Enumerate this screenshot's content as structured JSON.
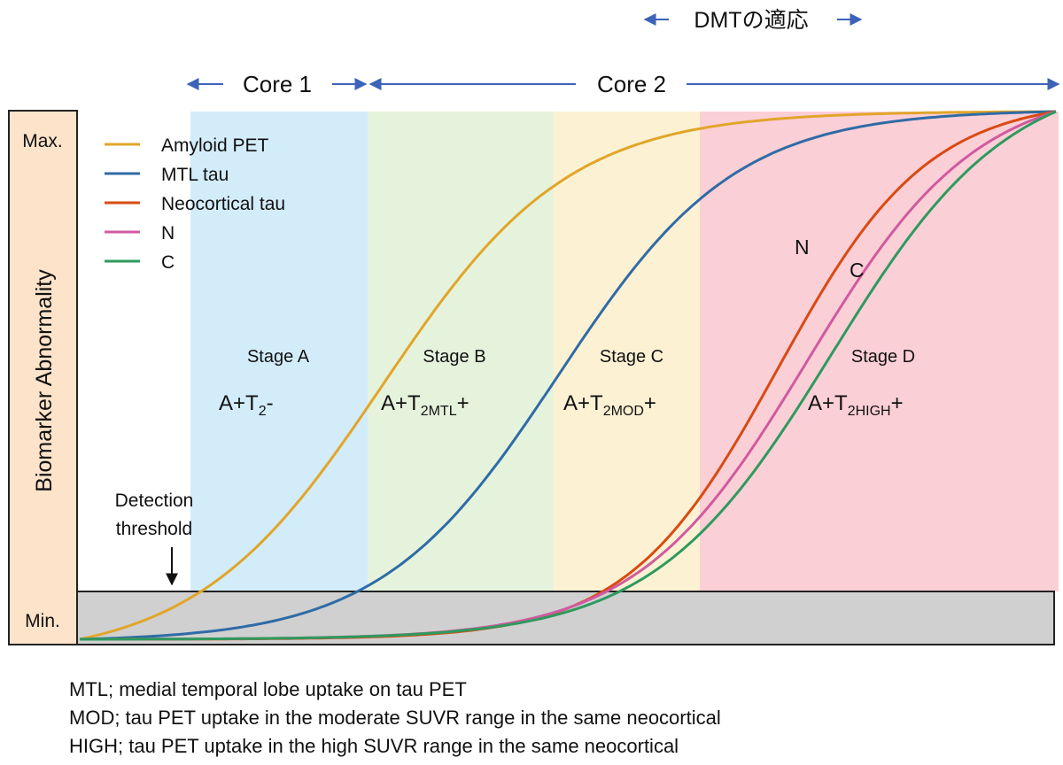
{
  "chart_data": {
    "type": "line",
    "ylabel": "Biomarker Abnormality",
    "ytick_labels": [
      "Max.",
      "Min."
    ],
    "detection_threshold_label": [
      "Detection",
      "threshold"
    ],
    "header": {
      "dmt": "DMTの適応",
      "core1": "Core 1",
      "core2": "Core 2"
    },
    "stages": [
      {
        "name": "Stage A",
        "label_main": "A+T",
        "label_sub": "2",
        "label_tail": "-",
        "color": "#d3ecfa"
      },
      {
        "name": "Stage B",
        "label_main": "A+T",
        "label_sub": "2MTL",
        "label_tail": "+",
        "color": "#e6f3dc"
      },
      {
        "name": "Stage C",
        "label_main": "A+T",
        "label_sub": "2MOD",
        "label_tail": "+",
        "color": "#fdf1d3"
      },
      {
        "name": "Stage D",
        "label_main": "A+T",
        "label_sub": "2HIGH",
        "label_tail": "+",
        "color": "#fbcfd6"
      }
    ],
    "series": [
      {
        "name": "Amyloid PET",
        "color": "#e1a52a",
        "midpoint": 0.31,
        "steepness": 10.5
      },
      {
        "name": "MTL tau",
        "color": "#2f6ba6",
        "midpoint": 0.49,
        "steepness": 11.0
      },
      {
        "name": "Neocortical tau",
        "color": "#d94a12",
        "midpoint": 0.715,
        "steepness": 13.0
      },
      {
        "name": "N",
        "color": "#d05aa0",
        "midpoint": 0.745,
        "steepness": 11.5
      },
      {
        "name": "C",
        "color": "#2e9a5e",
        "midpoint": 0.77,
        "steepness": 11.0
      }
    ],
    "curve_labels": [
      "N",
      "C"
    ]
  },
  "footnotes": [
    "MTL; medial temporal lobe uptake on tau PET",
    "MOD; tau PET uptake in the moderate SUVR range in the same neocortical",
    "HIGH; tau PET uptake in the high SUVR range in the same neocortical"
  ]
}
